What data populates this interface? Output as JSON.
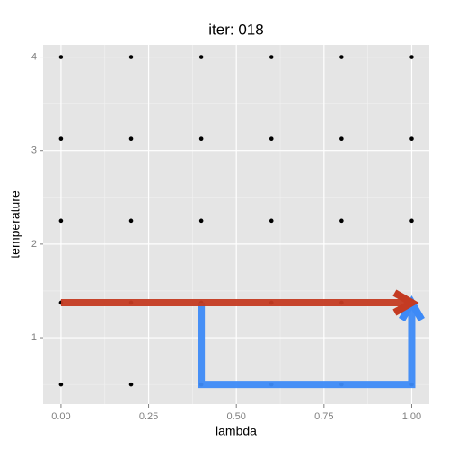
{
  "chart_data": {
    "type": "scatter",
    "title": "iter: 018",
    "x_label": "lambda",
    "y_label": "temperature",
    "xlim": [
      -0.051,
      1.05
    ],
    "ylim": [
      0.29,
      4.13
    ],
    "xticks": [
      {
        "value": 0,
        "label": "0.00"
      },
      {
        "value": 0.25,
        "label": "0.25"
      },
      {
        "value": 0.5,
        "label": "0.50"
      },
      {
        "value": 0.75,
        "label": "0.75"
      },
      {
        "value": 1,
        "label": "1.00"
      }
    ],
    "yticks": [
      1,
      2,
      3,
      4
    ],
    "x_minor": [
      0.125,
      0.375,
      0.625,
      0.875
    ],
    "y_minor": [
      0.5,
      1.5,
      2.5,
      3.5
    ],
    "grid": true,
    "series": [
      {
        "color": "#000000",
        "x": [
          0,
          0.2,
          0.4,
          0.6,
          0.8,
          1.0,
          0,
          0.2,
          0.4,
          0.6,
          0.8,
          1.0,
          0,
          0.2,
          0.4,
          0.6,
          0.8,
          1.0,
          0,
          0.2,
          0.4,
          0.6,
          0.8,
          1.0,
          0,
          0.2,
          0.4,
          0.6,
          0.8,
          1.0
        ],
        "values": [
          0.5,
          0.5,
          0.5,
          0.5,
          0.5,
          0.5,
          1.375,
          1.375,
          1.375,
          1.375,
          1.375,
          1.375,
          2.25,
          2.25,
          2.25,
          2.25,
          2.25,
          2.25,
          3.125,
          3.125,
          3.125,
          3.125,
          3.125,
          3.125,
          4,
          4,
          4,
          4,
          4,
          4
        ]
      }
    ],
    "paths": [
      {
        "color": "#3d8af7",
        "x": [
          0.4,
          0.4,
          1.0,
          1.0
        ],
        "values": [
          1.375,
          0.5,
          0.5,
          1.375
        ]
      },
      {
        "color": "#c43b22",
        "x": [
          0,
          1.0
        ],
        "values": [
          1.375,
          1.375
        ]
      }
    ]
  }
}
